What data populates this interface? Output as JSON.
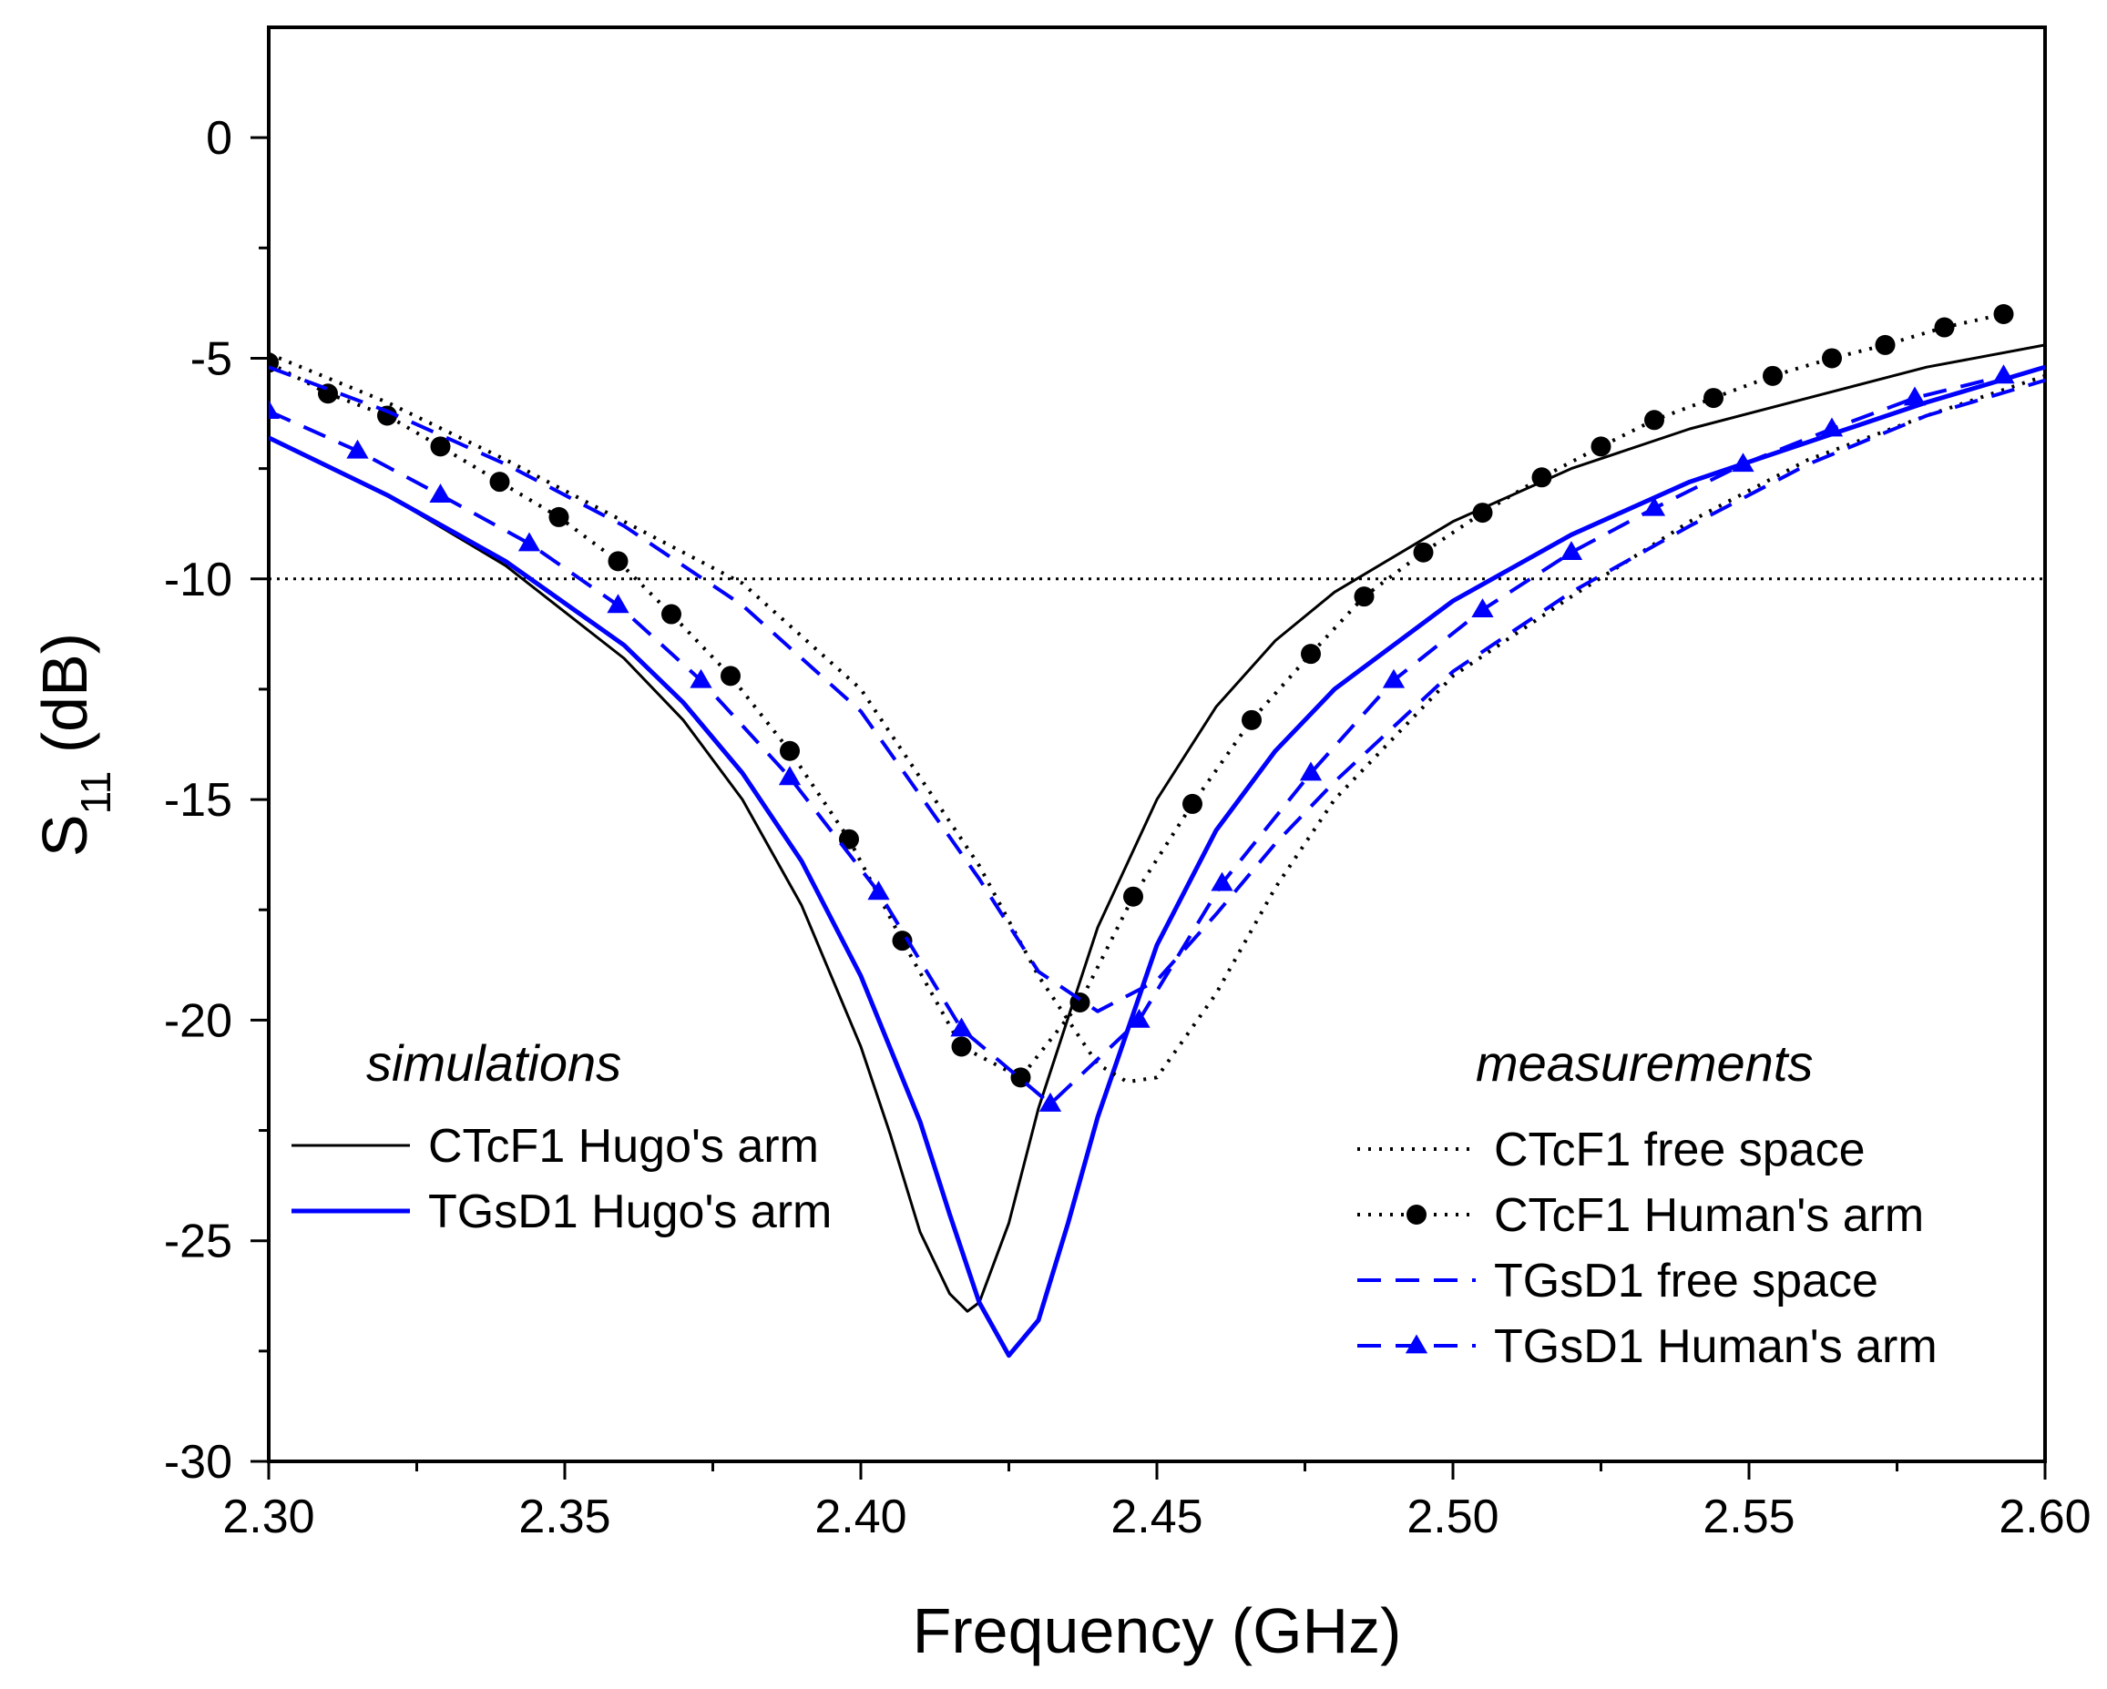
{
  "chart_data": {
    "type": "line",
    "title": "",
    "xlabel": "Frequency (GHz)",
    "ylabel_main": "S",
    "ylabel_sub": "11",
    "ylabel_unit": " (dB)",
    "xlim": [
      2.3,
      2.6
    ],
    "ylim": [
      -30,
      2.5
    ],
    "x_ticks": [
      2.3,
      2.35,
      2.4,
      2.45,
      2.5,
      2.55,
      2.6
    ],
    "x_tick_labels": [
      "2.30",
      "2.35",
      "2.40",
      "2.45",
      "2.50",
      "2.55",
      "2.60"
    ],
    "y_ticks": [
      0,
      -5,
      -10,
      -15,
      -20,
      -25,
      -30
    ],
    "y_tick_labels": [
      "0",
      "-5",
      "-10",
      "-15",
      "-20",
      "-25",
      "-30"
    ],
    "reference_line": {
      "y": -10,
      "style": "dotted",
      "color": "#000000"
    },
    "group_labels": {
      "left": "simulations",
      "right": "measurements"
    },
    "series": [
      {
        "name": "CTcF1 Hugo's arm",
        "group": "simulations",
        "color": "#000000",
        "style": "solid",
        "width": 3,
        "marker": "none",
        "x": [
          2.3,
          2.32,
          2.34,
          2.36,
          2.37,
          2.38,
          2.39,
          2.4,
          2.405,
          2.41,
          2.415,
          2.418,
          2.42,
          2.425,
          2.43,
          2.44,
          2.45,
          2.46,
          2.47,
          2.48,
          2.5,
          2.52,
          2.54,
          2.56,
          2.58,
          2.6
        ],
        "y": [
          -6.8,
          -8.1,
          -9.7,
          -11.8,
          -13.2,
          -15.0,
          -17.4,
          -20.6,
          -22.6,
          -24.8,
          -26.2,
          -26.6,
          -26.4,
          -24.6,
          -22.0,
          -17.9,
          -15.0,
          -12.9,
          -11.4,
          -10.3,
          -8.7,
          -7.5,
          -6.6,
          -5.9,
          -5.2,
          -4.7
        ]
      },
      {
        "name": "TGsD1 Hugo's arm",
        "group": "simulations",
        "color": "#0000ff",
        "style": "solid",
        "width": 5,
        "marker": "none",
        "x": [
          2.3,
          2.32,
          2.34,
          2.36,
          2.37,
          2.38,
          2.39,
          2.4,
          2.41,
          2.415,
          2.42,
          2.425,
          2.43,
          2.435,
          2.44,
          2.45,
          2.46,
          2.47,
          2.48,
          2.5,
          2.52,
          2.54,
          2.56,
          2.58,
          2.6
        ],
        "y": [
          -6.8,
          -8.1,
          -9.6,
          -11.5,
          -12.8,
          -14.4,
          -16.4,
          -19.0,
          -22.3,
          -24.4,
          -26.4,
          -27.6,
          -26.8,
          -24.6,
          -22.2,
          -18.3,
          -15.7,
          -13.9,
          -12.5,
          -10.5,
          -9.0,
          -7.8,
          -6.9,
          -6.0,
          -5.2
        ]
      },
      {
        "name": "CTcF1 free space",
        "group": "measurements",
        "color": "#000000",
        "style": "dotted",
        "width": 4,
        "marker": "none",
        "x": [
          2.3,
          2.32,
          2.34,
          2.36,
          2.38,
          2.4,
          2.42,
          2.43,
          2.44,
          2.445,
          2.45,
          2.46,
          2.47,
          2.48,
          2.5,
          2.52,
          2.54,
          2.56,
          2.58,
          2.6
        ],
        "y": [
          -4.9,
          -6.0,
          -7.3,
          -8.7,
          -10.1,
          -12.5,
          -16.5,
          -19.0,
          -21.0,
          -21.4,
          -21.3,
          -19.4,
          -17.0,
          -15.0,
          -12.2,
          -10.4,
          -8.7,
          -7.3,
          -6.3,
          -5.4
        ]
      },
      {
        "name": "CTcF1 Human's arm",
        "group": "measurements",
        "color": "#000000",
        "style": "dotted",
        "width": 4,
        "marker": "circle",
        "x": [
          2.3,
          2.31,
          2.32,
          2.329,
          2.339,
          2.349,
          2.359,
          2.368,
          2.378,
          2.388,
          2.398,
          2.407,
          2.417,
          2.427,
          2.437,
          2.446,
          2.456,
          2.466,
          2.476,
          2.485,
          2.495,
          2.505,
          2.515,
          2.525,
          2.534,
          2.544,
          2.554,
          2.564,
          2.573,
          2.583,
          2.593
        ],
        "y": [
          -5.1,
          -5.8,
          -6.3,
          -7.0,
          -7.8,
          -8.6,
          -9.6,
          -10.8,
          -12.2,
          -13.9,
          -15.9,
          -18.2,
          -20.6,
          -21.3,
          -19.6,
          -17.2,
          -15.1,
          -13.2,
          -11.7,
          -10.4,
          -9.4,
          -8.5,
          -7.7,
          -7.0,
          -6.4,
          -5.9,
          -5.4,
          -5.0,
          -4.7,
          -4.3,
          -4.0
        ]
      },
      {
        "name": "TGsD1 free space",
        "group": "measurements",
        "color": "#0000ff",
        "style": "dashed",
        "width": 4,
        "marker": "none",
        "x": [
          2.3,
          2.32,
          2.34,
          2.36,
          2.38,
          2.4,
          2.42,
          2.43,
          2.44,
          2.45,
          2.46,
          2.47,
          2.48,
          2.5,
          2.52,
          2.54,
          2.56,
          2.58,
          2.6
        ],
        "y": [
          -5.2,
          -6.2,
          -7.4,
          -8.8,
          -10.6,
          -13.0,
          -16.8,
          -18.9,
          -19.8,
          -19.1,
          -17.6,
          -16.0,
          -14.6,
          -12.1,
          -10.3,
          -8.8,
          -7.4,
          -6.3,
          -5.5
        ]
      },
      {
        "name": "TGsD1 Human's arm",
        "group": "measurements",
        "color": "#0000ff",
        "style": "dashed",
        "width": 4,
        "marker": "triangle",
        "x": [
          2.3,
          2.315,
          2.329,
          2.344,
          2.359,
          2.373,
          2.388,
          2.403,
          2.417,
          2.432,
          2.447,
          2.461,
          2.476,
          2.49,
          2.505,
          2.52,
          2.534,
          2.549,
          2.564,
          2.578,
          2.593
        ],
        "y": [
          -6.2,
          -7.1,
          -8.1,
          -9.2,
          -10.6,
          -12.3,
          -14.5,
          -17.1,
          -20.2,
          -21.9,
          -20.0,
          -16.9,
          -14.4,
          -12.3,
          -10.7,
          -9.4,
          -8.4,
          -7.4,
          -6.6,
          -5.9,
          -5.4
        ]
      }
    ]
  }
}
